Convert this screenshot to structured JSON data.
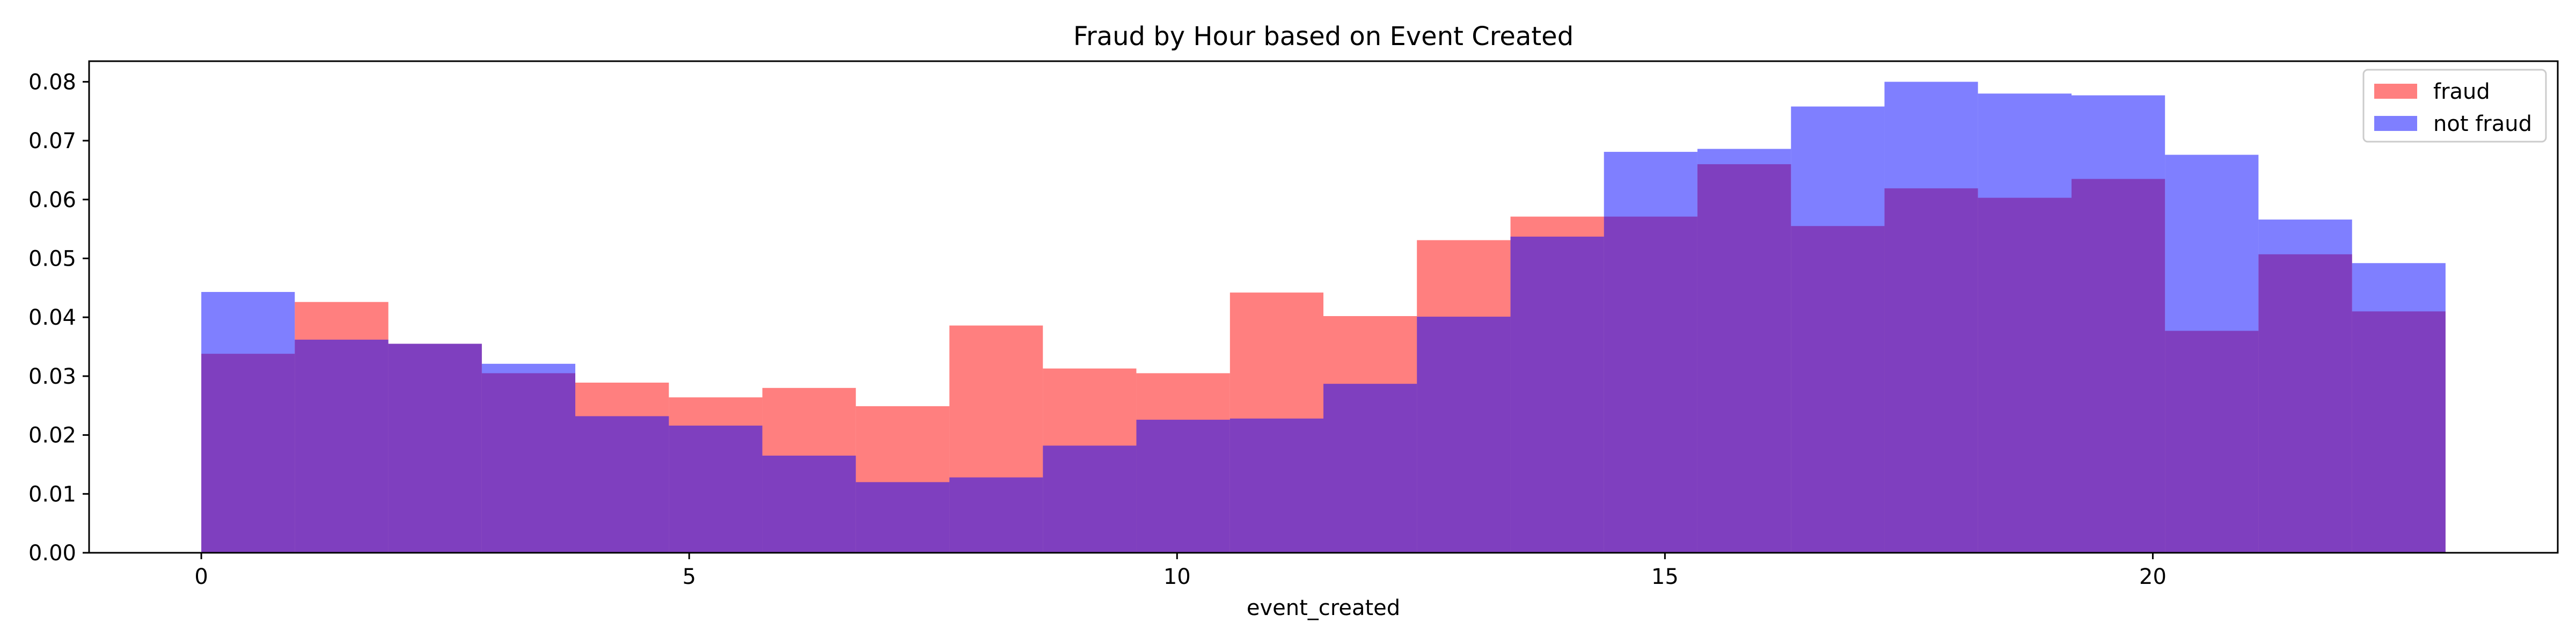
{
  "chart_data": {
    "type": "bar",
    "title": "Fraud by Hour based on Event Created",
    "xlabel": "event_created",
    "ylabel": "",
    "xlim": [
      -1.15,
      24.15
    ],
    "ylim": [
      0,
      0.0835
    ],
    "x_ticks": [
      0,
      5,
      10,
      15,
      20
    ],
    "y_ticks": [
      0.0,
      0.01,
      0.02,
      0.03,
      0.04,
      0.05,
      0.06,
      0.07,
      0.08
    ],
    "bin_edges": [
      0,
      0.958,
      1.917,
      2.875,
      3.833,
      4.792,
      5.75,
      6.708,
      7.667,
      8.625,
      9.583,
      10.542,
      11.5,
      12.458,
      13.417,
      14.375,
      15.333,
      16.292,
      17.25,
      18.208,
      19.167,
      20.125,
      21.083,
      22.042,
      23
    ],
    "grid": false,
    "legend_position": "top-right",
    "series": [
      {
        "name": "fraud",
        "color": "#ff0000",
        "alpha": 0.5,
        "values": [
          0.0338,
          0.0426,
          0.0355,
          0.0305,
          0.0289,
          0.0264,
          0.028,
          0.0249,
          0.0386,
          0.0313,
          0.0305,
          0.0442,
          0.0402,
          0.0531,
          0.0571,
          0.0571,
          0.066,
          0.0555,
          0.0619,
          0.0603,
          0.0635,
          0.0377,
          0.0507,
          0.041
        ]
      },
      {
        "name": "not fraud",
        "color": "#0000ff",
        "alpha": 0.5,
        "values": [
          0.0443,
          0.0362,
          0.0355,
          0.0321,
          0.0232,
          0.0216,
          0.0165,
          0.012,
          0.0128,
          0.0182,
          0.0226,
          0.0228,
          0.0287,
          0.0401,
          0.0537,
          0.0681,
          0.0686,
          0.0758,
          0.08,
          0.078,
          0.0777,
          0.0676,
          0.0566,
          0.0492
        ]
      }
    ]
  }
}
